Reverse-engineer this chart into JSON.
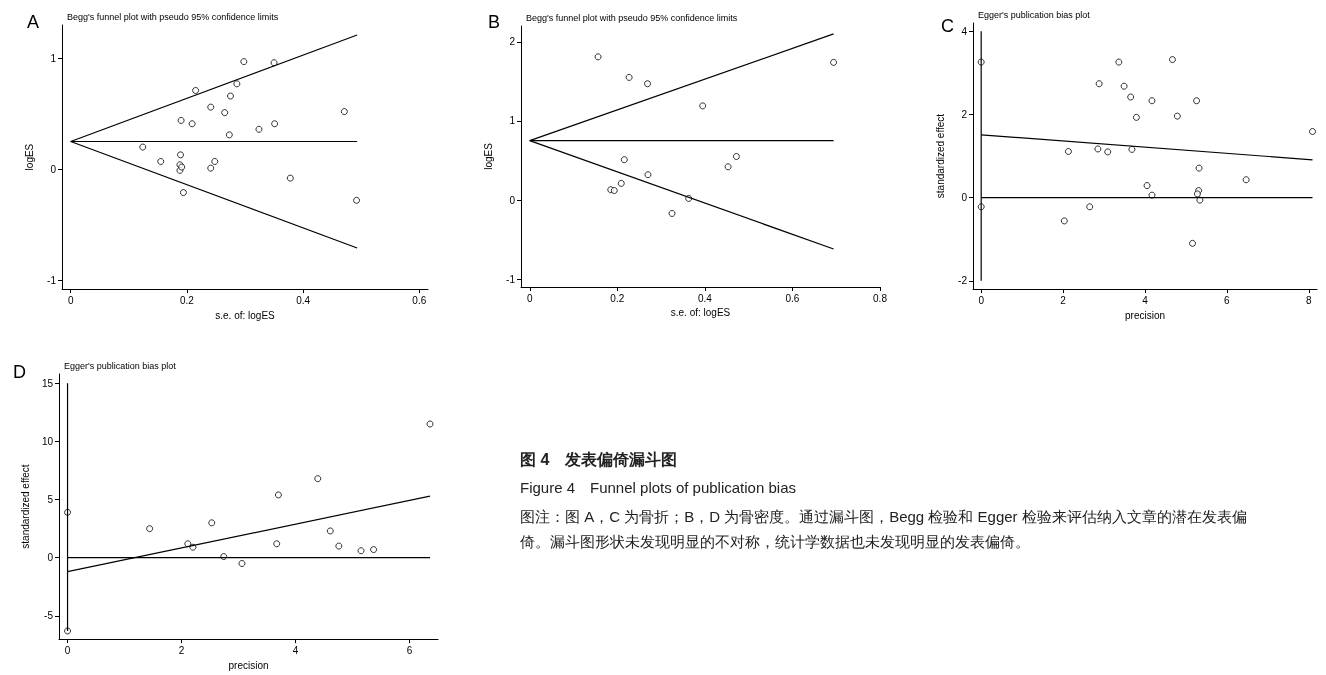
{
  "chart_data": [
    {
      "type": "scatter",
      "title": "A",
      "subtitle": "Begg's funnel plot with pseudo 95% confidence limits",
      "xlabel": "s.e. of: logES",
      "ylabel": "logES",
      "xlim": [
        -0.015,
        0.615
      ],
      "xticks": [
        0,
        0.2,
        0.4,
        0.6
      ],
      "ylim": [
        -1.08,
        1.3
      ],
      "yticks": [
        -1,
        0,
        1
      ],
      "series": [
        {
          "type": "scatter",
          "marker": "circle",
          "color": "#000000",
          "x": [
            0.124,
            0.155,
            0.189,
            0.188,
            0.188,
            0.191,
            0.19,
            0.194,
            0.209,
            0.215,
            0.241,
            0.241,
            0.248,
            0.265,
            0.273,
            0.275,
            0.286,
            0.298,
            0.324,
            0.35,
            0.351,
            0.378,
            0.471,
            0.492
          ],
          "values": [
            0.2,
            0.07,
            0.13,
            0.04,
            -0.01,
            0.02,
            0.44,
            -0.21,
            0.41,
            0.71,
            0.56,
            0.01,
            0.07,
            0.51,
            0.31,
            0.66,
            0.77,
            0.97,
            0.36,
            0.96,
            0.41,
            -0.08,
            0.52,
            -0.28
          ]
        },
        {
          "type": "line",
          "marker": "none",
          "color": "#000000",
          "x": [
            0,
            0.493
          ],
          "values": [
            0.25,
            1.21
          ]
        },
        {
          "type": "line",
          "marker": "none",
          "color": "#000000",
          "x": [
            0,
            0.493
          ],
          "values": [
            0.25,
            0.25
          ]
        },
        {
          "type": "line",
          "marker": "none",
          "color": "#000000",
          "x": [
            0,
            0.493
          ],
          "values": [
            0.25,
            -0.71
          ]
        }
      ]
    },
    {
      "type": "scatter",
      "title": "B",
      "subtitle": "Begg's funnel plot with pseudo 95% confidence limits",
      "xlabel": "s.e. of: logES",
      "ylabel": "logES",
      "xlim": [
        -0.02,
        0.8
      ],
      "xticks": [
        0,
        0.2,
        0.4,
        0.6,
        0.8
      ],
      "ylim": [
        -1.1,
        2.2
      ],
      "yticks": [
        -1,
        0,
        1,
        2
      ],
      "series": [
        {
          "type": "scatter",
          "marker": "circle",
          "color": "#000000",
          "x": [
            0.156,
            0.227,
            0.269,
            0.395,
            0.694,
            0.216,
            0.185,
            0.193,
            0.209,
            0.27,
            0.453,
            0.472,
            0.325,
            0.363
          ],
          "values": [
            1.81,
            1.55,
            1.47,
            1.19,
            1.74,
            0.51,
            0.13,
            0.12,
            0.21,
            0.32,
            0.42,
            0.55,
            -0.17,
            0.02
          ]
        },
        {
          "type": "line",
          "marker": "none",
          "color": "#000000",
          "x": [
            0,
            0.694
          ],
          "values": [
            0.75,
            2.1
          ]
        },
        {
          "type": "line",
          "marker": "none",
          "color": "#000000",
          "x": [
            0,
            0.694
          ],
          "values": [
            0.75,
            0.75
          ]
        },
        {
          "type": "line",
          "marker": "none",
          "color": "#000000",
          "x": [
            0,
            0.694
          ],
          "values": [
            0.75,
            -0.62
          ]
        }
      ]
    },
    {
      "type": "scatter",
      "title": "C",
      "subtitle": "Egger's publication bias plot",
      "xlabel": "precision",
      "ylabel": "standardized effect",
      "xlim": [
        -0.2,
        8.2
      ],
      "xticks": [
        0,
        2,
        4,
        6,
        8
      ],
      "ylim": [
        -2.2,
        4.2
      ],
      "yticks": [
        -2,
        0,
        2,
        4
      ],
      "series": [
        {
          "type": "scatter",
          "marker": "circle",
          "color": "#000000",
          "x": [
            2.88,
            3.36,
            3.49,
            3.65,
            3.79,
            4.17,
            4.67,
            4.79,
            5.26,
            8.09,
            2.13,
            2.85,
            3.09,
            3.68,
            5.32,
            6.47,
            4.05,
            4.17,
            5.31,
            5.28,
            5.34,
            2.65,
            2.03,
            5.16
          ],
          "values": [
            2.74,
            3.26,
            2.68,
            2.42,
            1.93,
            2.33,
            3.32,
            1.96,
            2.33,
            1.59,
            1.11,
            1.17,
            1.1,
            1.16,
            0.71,
            0.43,
            0.29,
            0.06,
            0.17,
            0.09,
            -0.06,
            -0.22,
            -0.56,
            -1.1
          ]
        },
        {
          "type": "scatter",
          "marker": "circle",
          "color": "#000000",
          "x": [
            0,
            0
          ],
          "values": [
            3.26,
            -0.22
          ]
        },
        {
          "type": "line",
          "marker": "none",
          "color": "#000000",
          "x": [
            0,
            0
          ],
          "values": [
            4,
            -2
          ]
        },
        {
          "type": "line",
          "marker": "none",
          "color": "#000000",
          "x": [
            0,
            8.09
          ],
          "values": [
            1.51,
            0.91
          ]
        },
        {
          "type": "line",
          "marker": "none",
          "color": "#000000",
          "x": [
            0,
            8.09
          ],
          "values": [
            0,
            0
          ]
        }
      ]
    },
    {
      "type": "scatter",
      "title": "D",
      "subtitle": "Egger's publication bias plot",
      "xlabel": "precision",
      "ylabel": "standardized effect",
      "xlim": [
        -0.15,
        6.5
      ],
      "xticks": [
        0,
        2,
        4,
        6
      ],
      "ylim": [
        -7,
        15.8
      ],
      "yticks": [
        -5,
        0,
        5,
        10,
        15
      ],
      "series": [
        {
          "type": "scatter",
          "marker": "circle",
          "color": "#000000",
          "x": [
            1.44,
            2.11,
            2.2,
            2.53,
            2.74,
            3.06,
            3.67,
            3.7,
            4.39,
            4.61,
            4.76,
            5.15,
            5.37,
            6.36
          ],
          "values": [
            2.5,
            1.2,
            0.9,
            3,
            0.1,
            -0.5,
            1.2,
            5.4,
            6.8,
            2.3,
            1,
            0.6,
            0.7,
            11.5
          ]
        },
        {
          "type": "scatter",
          "marker": "circle",
          "color": "#000000",
          "x": [
            0,
            0
          ],
          "values": [
            3.9,
            -6.3
          ]
        },
        {
          "type": "line",
          "marker": "none",
          "color": "#000000",
          "x": [
            0,
            0
          ],
          "values": [
            15,
            -6.3
          ]
        },
        {
          "type": "line",
          "marker": "none",
          "color": "#000000",
          "x": [
            0,
            6.36
          ],
          "values": [
            -1.2,
            5.3
          ]
        },
        {
          "type": "line",
          "marker": "none",
          "color": "#000000",
          "x": [
            0,
            6.36
          ],
          "values": [
            0,
            0
          ]
        }
      ]
    },
    {
      "type": "other",
      "title": "图 4　发表偏倚漏斗图",
      "subtitle": "Figure 4　Funnel plots of publication bias",
      "annotations": [
        "图注：图 A，C 为骨折；B，D 为骨密度。通过漏斗图，Begg 检验和 Egger 检验来评估纳入文章的潜在发表偏倚。漏斗图形状未发现明显的不对称，统计学数据也未发现明显的发表偏倚。"
      ]
    }
  ]
}
